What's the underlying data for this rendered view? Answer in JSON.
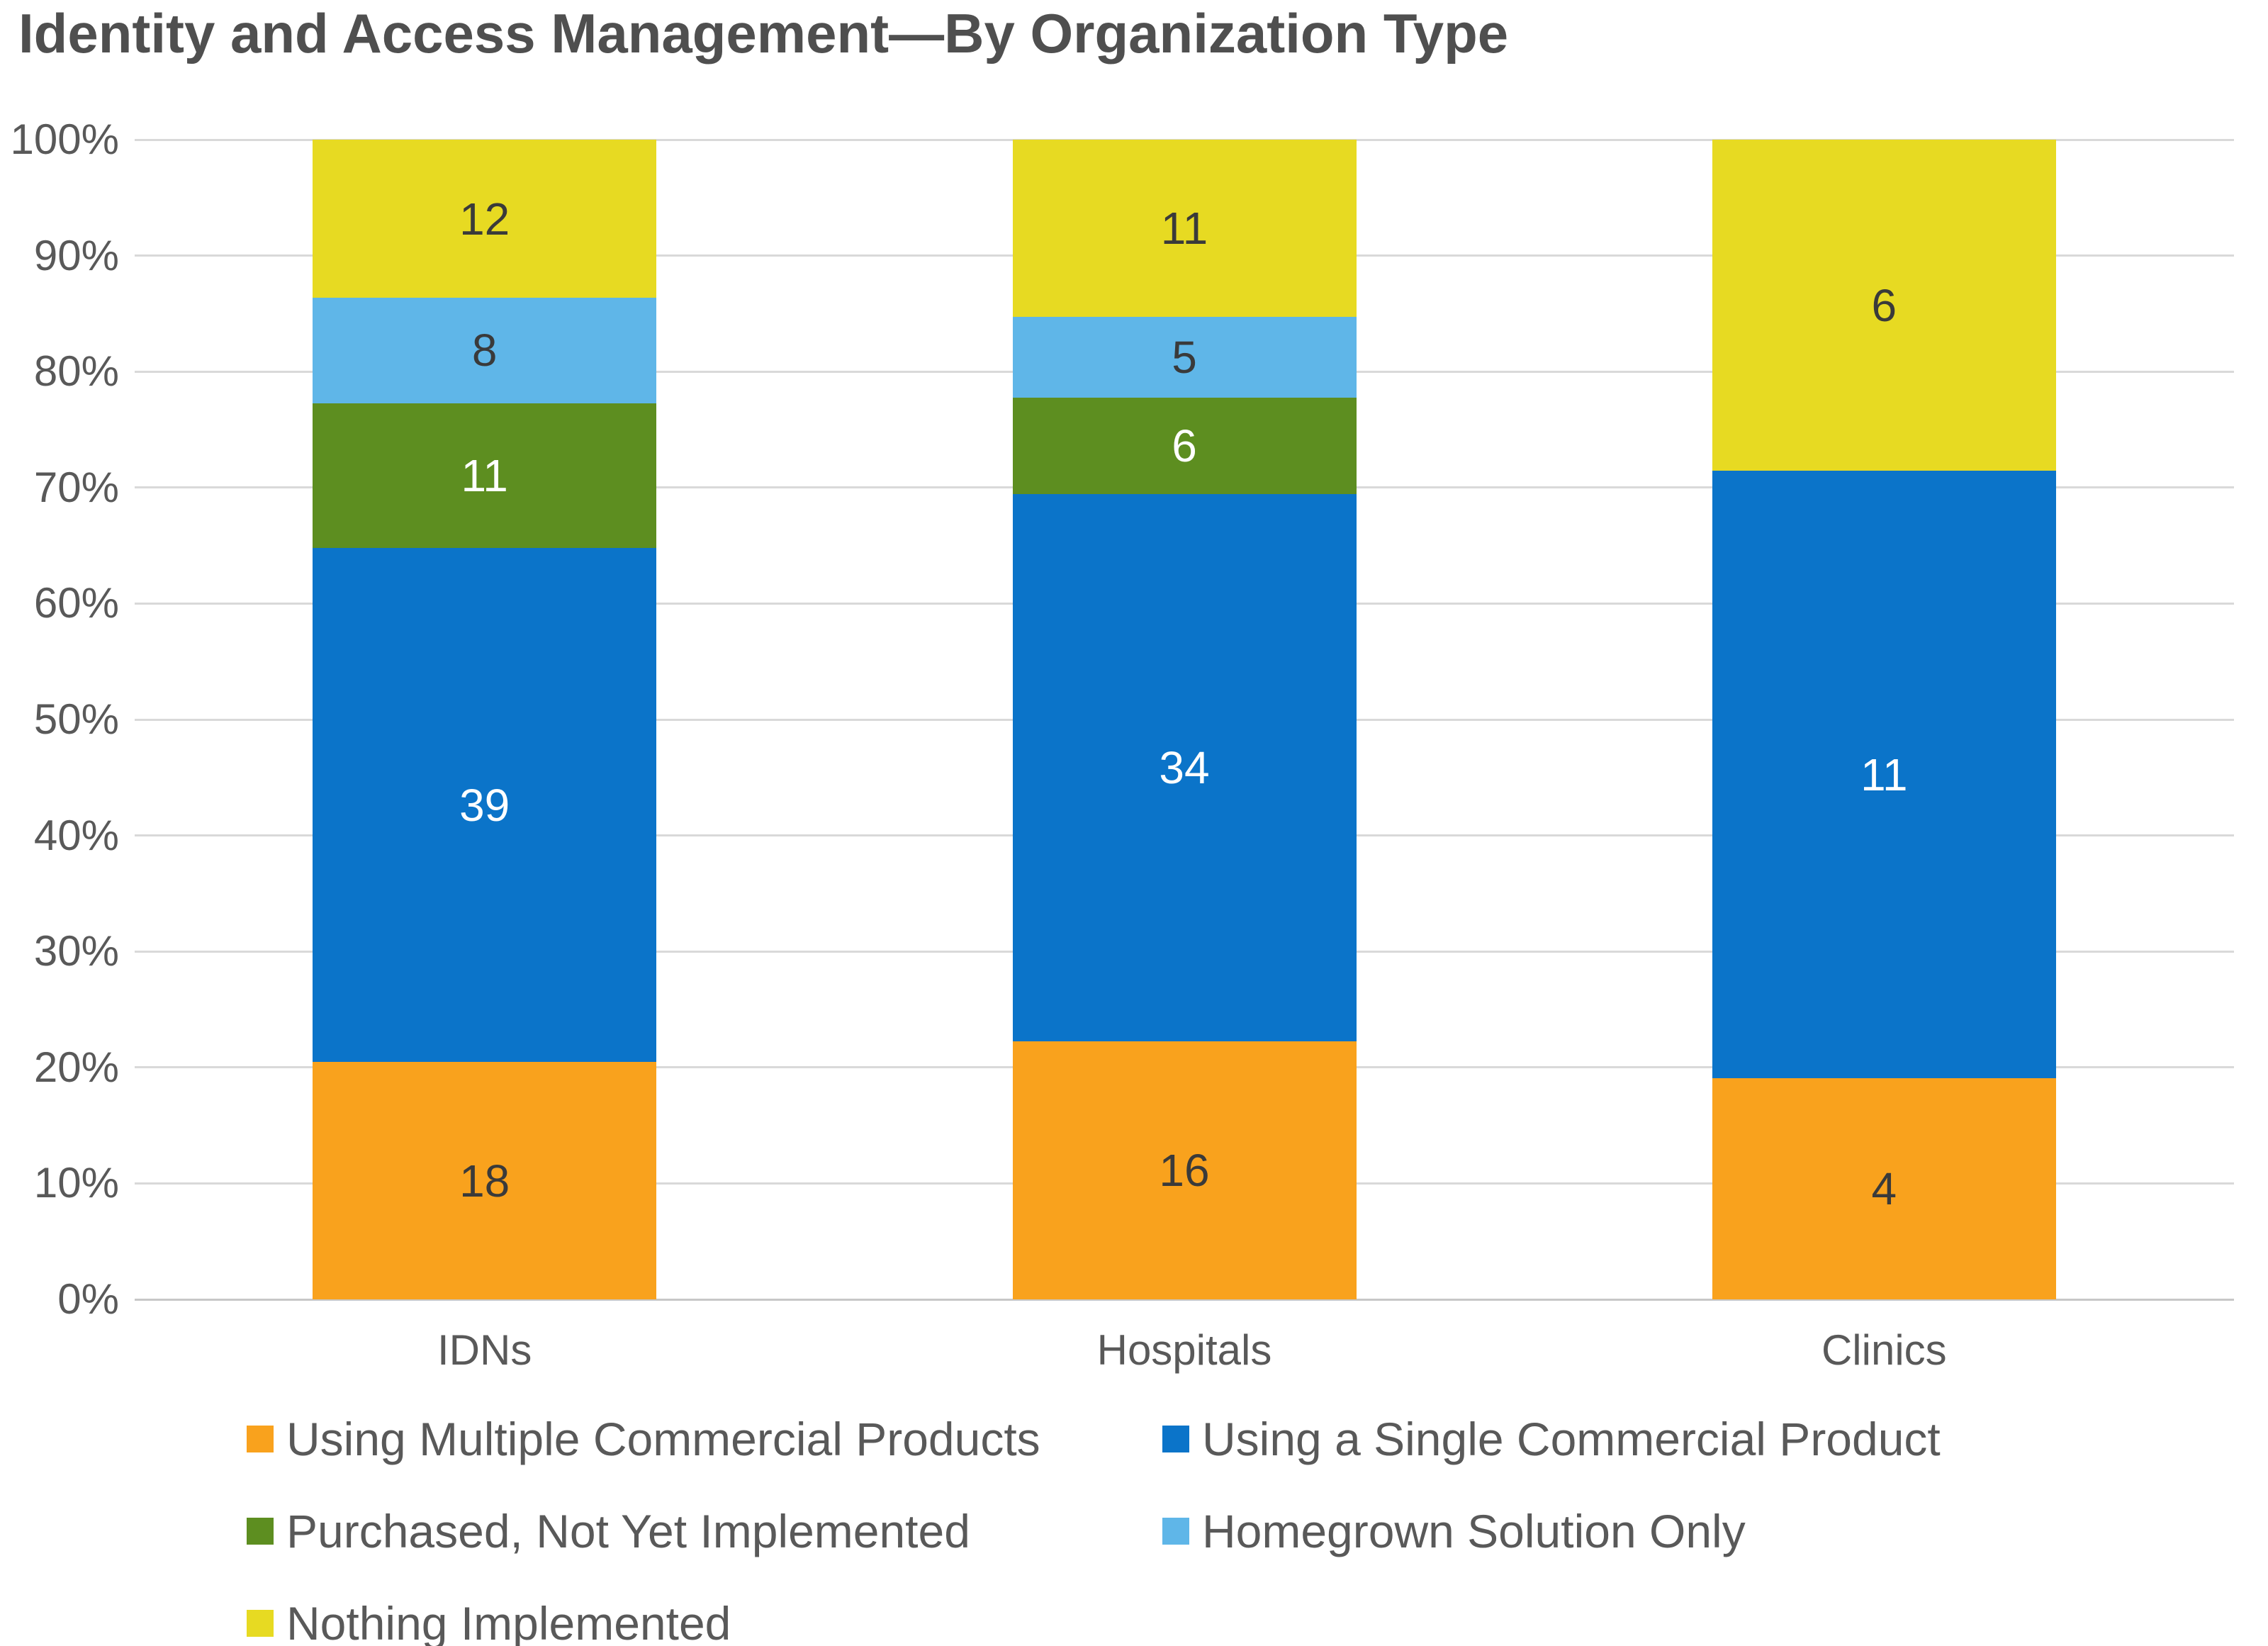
{
  "title": "Identity and Access Management—By Organization Type",
  "chart_data": {
    "type": "bar",
    "subtype": "stacked-100-percent",
    "categories": [
      "IDNs",
      "Hospitals",
      "Clinics"
    ],
    "series": [
      {
        "name": "Using Multiple Commercial Products",
        "color": "#F9A21D",
        "label_color": "#3a3a3a",
        "values": [
          18,
          16,
          4
        ]
      },
      {
        "name": "Using a Single Commercial Product",
        "color": "#0B74C9",
        "label_color": "#ffffff",
        "values": [
          39,
          34,
          11
        ]
      },
      {
        "name": "Purchased, Not Yet Implemented",
        "color": "#5D8E20",
        "label_color": "#ffffff",
        "values": [
          11,
          6,
          0
        ]
      },
      {
        "name": "Homegrown Solution Only",
        "color": "#5FB6E8",
        "label_color": "#3a3a3a",
        "values": [
          8,
          5,
          0
        ]
      },
      {
        "name": "Nothing Implemented",
        "color": "#E7DA22",
        "label_color": "#3a3a3a",
        "values": [
          12,
          11,
          6
        ]
      }
    ],
    "y_axis": {
      "min": 0,
      "max": 100,
      "ticks": [
        "0%",
        "10%",
        "20%",
        "30%",
        "40%",
        "50%",
        "60%",
        "70%",
        "80%",
        "90%",
        "100%"
      ]
    },
    "grid": true,
    "legend_position": "bottom"
  }
}
